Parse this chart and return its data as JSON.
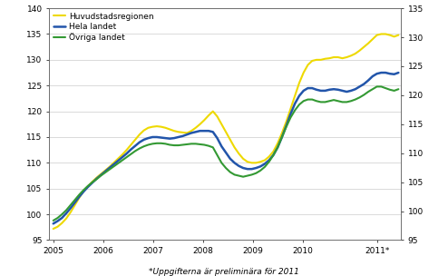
{
  "footnote": "*Uppgifterna är preliminära för 2011",
  "legend": [
    "Huvudstadsregionen",
    "Hela landet",
    "Övriga landet"
  ],
  "colors": [
    "#eed900",
    "#2255aa",
    "#339933"
  ],
  "linewidths": [
    1.5,
    1.8,
    1.5
  ],
  "ylim_left": [
    95,
    140
  ],
  "ylim_right": [
    95,
    135
  ],
  "yticks_left": [
    95,
    100,
    105,
    110,
    115,
    120,
    125,
    130,
    135,
    140
  ],
  "yticks_right": [
    95,
    100,
    105,
    110,
    115,
    120,
    125,
    130,
    135
  ],
  "xtick_labels": [
    "2005",
    "2006",
    "2007",
    "2008",
    "2009",
    "2010",
    "2011*"
  ],
  "xtick_positions": [
    2005.0,
    2006.0,
    2007.0,
    2008.0,
    2009.0,
    2010.0,
    2011.5
  ],
  "background_color": "#ffffff",
  "grid_color": "#cccccc",
  "x_start": 2005.0,
  "x_end": 2011.92,
  "xlim": [
    2004.92,
    2011.97
  ],
  "huvudstadsregionen": [
    97.2,
    97.6,
    98.3,
    99.2,
    100.4,
    101.8,
    103.2,
    104.5,
    105.4,
    106.3,
    107.1,
    107.8,
    108.5,
    109.2,
    110.0,
    110.8,
    111.6,
    112.5,
    113.5,
    114.5,
    115.5,
    116.3,
    116.8,
    117.0,
    117.1,
    117.0,
    116.8,
    116.5,
    116.2,
    116.0,
    115.9,
    115.8,
    116.2,
    116.8,
    117.5,
    118.3,
    119.2,
    120.0,
    119.0,
    117.5,
    116.0,
    114.5,
    113.0,
    111.8,
    110.8,
    110.2,
    110.0,
    110.0,
    110.2,
    110.5,
    111.2,
    112.2,
    113.8,
    115.8,
    118.0,
    120.5,
    123.0,
    125.5,
    127.5,
    129.0,
    129.8,
    130.0,
    130.0,
    130.2,
    130.3,
    130.5,
    130.5,
    130.3,
    130.5,
    130.8,
    131.2,
    131.8,
    132.5,
    133.2,
    134.0,
    134.8,
    135.0,
    135.0,
    134.8,
    134.5,
    134.8
  ],
  "hela_landet": [
    98.2,
    98.7,
    99.3,
    100.2,
    101.2,
    102.3,
    103.4,
    104.4,
    105.3,
    106.1,
    106.9,
    107.6,
    108.3,
    109.0,
    109.7,
    110.4,
    111.1,
    111.8,
    112.6,
    113.3,
    114.0,
    114.5,
    114.8,
    115.0,
    115.0,
    114.9,
    114.8,
    114.7,
    114.8,
    115.0,
    115.2,
    115.5,
    115.8,
    116.0,
    116.2,
    116.2,
    116.2,
    116.0,
    114.8,
    113.2,
    112.0,
    110.8,
    110.0,
    109.4,
    109.0,
    108.8,
    108.8,
    109.0,
    109.3,
    109.8,
    110.5,
    111.5,
    113.0,
    115.0,
    117.2,
    119.5,
    121.5,
    123.0,
    124.0,
    124.5,
    124.5,
    124.2,
    124.0,
    124.0,
    124.2,
    124.3,
    124.2,
    124.0,
    123.8,
    124.0,
    124.3,
    124.8,
    125.3,
    126.0,
    126.8,
    127.3,
    127.5,
    127.5,
    127.3,
    127.2,
    127.5
  ],
  "ovriga_landet": [
    98.8,
    99.3,
    100.0,
    100.8,
    101.8,
    102.8,
    103.8,
    104.7,
    105.5,
    106.2,
    106.8,
    107.5,
    108.1,
    108.7,
    109.3,
    109.9,
    110.5,
    111.1,
    111.7,
    112.3,
    112.8,
    113.2,
    113.5,
    113.7,
    113.8,
    113.8,
    113.7,
    113.5,
    113.4,
    113.4,
    113.5,
    113.6,
    113.7,
    113.7,
    113.6,
    113.5,
    113.3,
    113.0,
    111.5,
    110.0,
    109.0,
    108.2,
    107.7,
    107.5,
    107.3,
    107.5,
    107.7,
    108.0,
    108.5,
    109.2,
    110.2,
    111.5,
    113.0,
    115.0,
    117.0,
    118.8,
    120.2,
    121.3,
    122.0,
    122.3,
    122.3,
    122.0,
    121.8,
    121.8,
    122.0,
    122.2,
    122.0,
    121.8,
    121.8,
    122.0,
    122.3,
    122.7,
    123.2,
    123.8,
    124.3,
    124.8,
    124.8,
    124.5,
    124.2,
    124.0,
    124.3
  ]
}
